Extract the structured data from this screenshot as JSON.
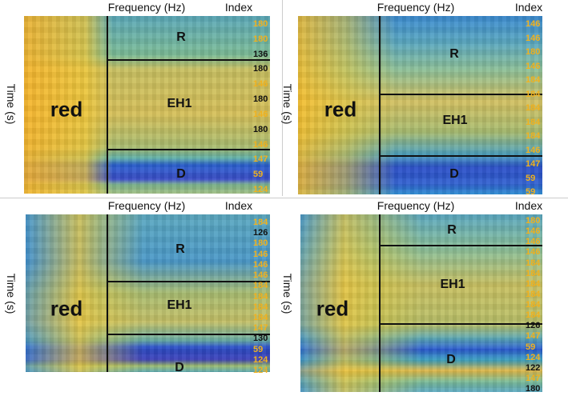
{
  "panels": [
    {
      "x_label": "Frequency (Hz)",
      "index_label": "Index",
      "y_label": "Time (s)",
      "main_label": "red",
      "regions": [
        "R",
        "EH1",
        "D"
      ],
      "index": [
        {
          "label": "180",
          "color": "#f0b11e"
        },
        {
          "label": "180",
          "color": "#f0b11e"
        },
        {
          "label": "136",
          "color": "#111111"
        },
        {
          "label": "180",
          "color": "#111111"
        },
        {
          "label": "146",
          "color": "#f0b11e"
        },
        {
          "label": "180",
          "color": "#111111"
        },
        {
          "label": "146",
          "color": "#f0b11e"
        },
        {
          "label": "180",
          "color": "#111111"
        },
        {
          "label": "146",
          "color": "#f0b11e"
        },
        {
          "label": "147",
          "color": "#f0b11e"
        },
        {
          "label": "59",
          "color": "#f0b11e"
        },
        {
          "label": "124",
          "color": "#f0b11e"
        }
      ]
    },
    {
      "x_label": "Frequency (Hz)",
      "index_label": "Index",
      "y_label": "Time (s)",
      "main_label": "red",
      "regions": [
        "R",
        "EH1",
        "D"
      ],
      "index": [
        {
          "label": "146",
          "color": "#f0b11e"
        },
        {
          "label": "146",
          "color": "#f0b11e"
        },
        {
          "label": "180",
          "color": "#f0b11e"
        },
        {
          "label": "146",
          "color": "#f0b11e"
        },
        {
          "label": "184",
          "color": "#f0b11e"
        },
        {
          "label": "184",
          "color": "#f0b11e"
        },
        {
          "label": "184",
          "color": "#f0b11e"
        },
        {
          "label": "184",
          "color": "#f0b11e"
        },
        {
          "label": "184",
          "color": "#f0b11e"
        },
        {
          "label": "146",
          "color": "#f0b11e"
        },
        {
          "label": "147",
          "color": "#f0b11e"
        },
        {
          "label": "59",
          "color": "#f0b11e"
        },
        {
          "label": "59",
          "color": "#f0b11e"
        }
      ]
    },
    {
      "x_label": "Frequency (Hz)",
      "index_label": "Index",
      "y_label": "Time (s)",
      "main_label": "red",
      "regions": [
        "R",
        "EH1",
        "D"
      ],
      "index": [
        {
          "label": "184",
          "color": "#f0b11e"
        },
        {
          "label": "126",
          "color": "#111111"
        },
        {
          "label": "180",
          "color": "#f0b11e"
        },
        {
          "label": "146",
          "color": "#f0b11e"
        },
        {
          "label": "146",
          "color": "#f0b11e"
        },
        {
          "label": "146",
          "color": "#f0b11e"
        },
        {
          "label": "184",
          "color": "#f0b11e"
        },
        {
          "label": "184",
          "color": "#f0b11e"
        },
        {
          "label": "184",
          "color": "#f0b11e"
        },
        {
          "label": "184",
          "color": "#f0b11e"
        },
        {
          "label": "147",
          "color": "#f0b11e"
        },
        {
          "label": "130",
          "color": "#111111"
        },
        {
          "label": "59",
          "color": "#f0b11e"
        },
        {
          "label": "124",
          "color": "#f0b11e"
        },
        {
          "label": "124",
          "color": "#f0b11e"
        }
      ]
    },
    {
      "x_label": "Frequency (Hz)",
      "index_label": "Index",
      "y_label": "Time (s)",
      "main_label": "red",
      "regions": [
        "R",
        "EH1",
        "D"
      ],
      "index": [
        {
          "label": "180",
          "color": "#f0b11e"
        },
        {
          "label": "146",
          "color": "#f0b11e"
        },
        {
          "label": "146",
          "color": "#f0b11e"
        },
        {
          "label": "146",
          "color": "#f0b11e"
        },
        {
          "label": "184",
          "color": "#f0b11e"
        },
        {
          "label": "184",
          "color": "#f0b11e"
        },
        {
          "label": "184",
          "color": "#f0b11e"
        },
        {
          "label": "184",
          "color": "#f0b11e"
        },
        {
          "label": "184",
          "color": "#f0b11e"
        },
        {
          "label": "184",
          "color": "#f0b11e"
        },
        {
          "label": "126",
          "color": "#111111"
        },
        {
          "label": "147",
          "color": "#f0b11e"
        },
        {
          "label": "59",
          "color": "#f0b11e"
        },
        {
          "label": "124",
          "color": "#f0b11e"
        },
        {
          "label": "122",
          "color": "#111111"
        },
        {
          "label": "147",
          "color": "#f0b11e"
        },
        {
          "label": "180",
          "color": "#111111"
        }
      ]
    }
  ]
}
